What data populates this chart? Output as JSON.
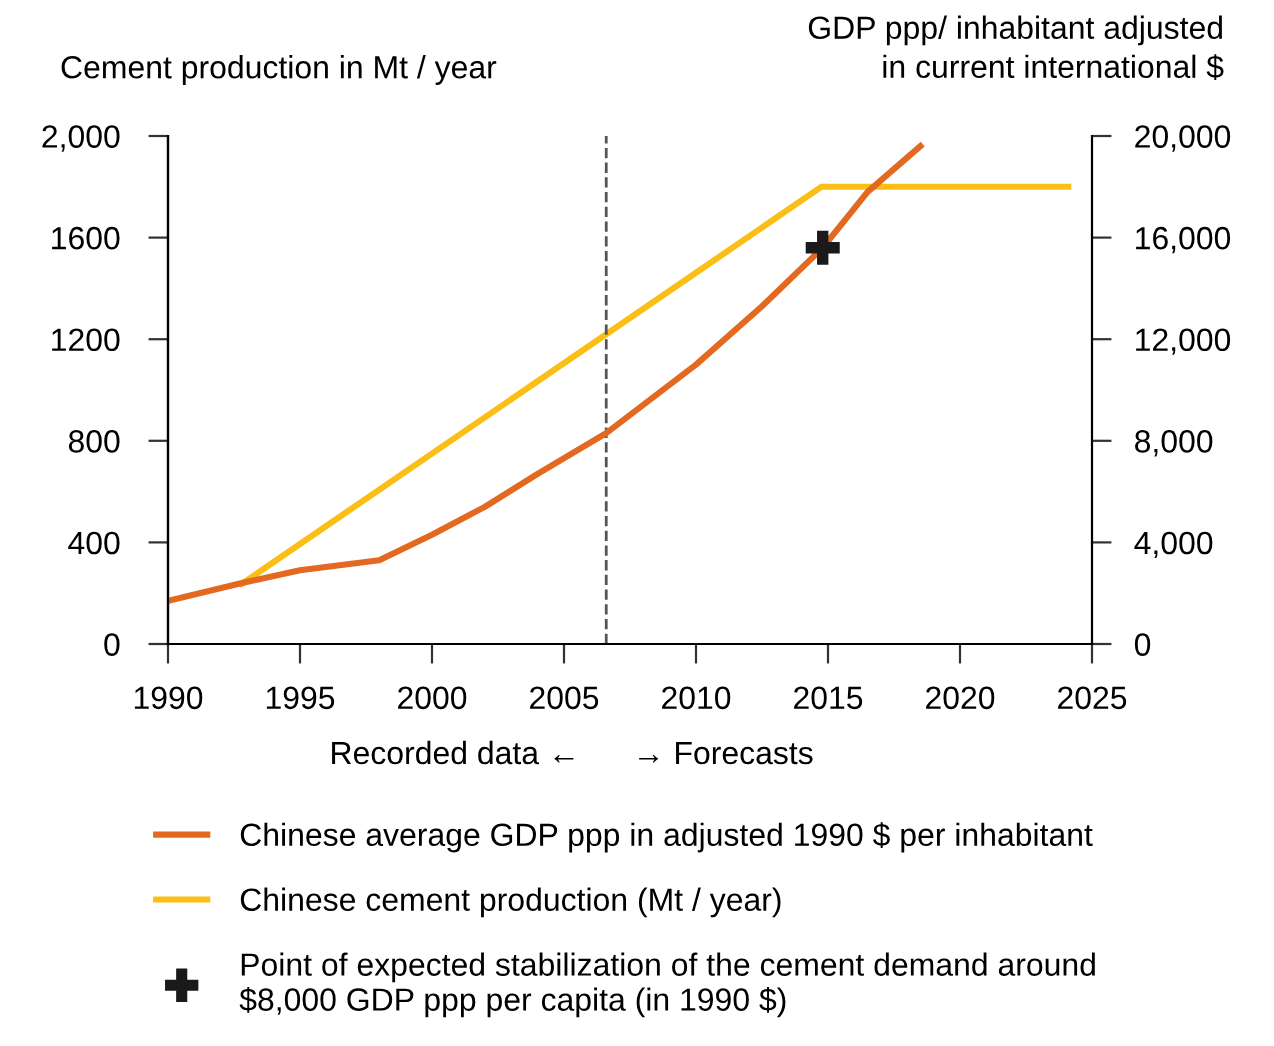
{
  "chart_data": {
    "type": "line",
    "ylabel": "Cement production in Mt / year",
    "y2label": "GDP ppp/ inhabitant adjusted\nin current international $",
    "xlim": [
      1990,
      2025
    ],
    "xticks": [
      1990,
      1995,
      2000,
      2005,
      2010,
      2015,
      2020,
      2025
    ],
    "ylim": [
      0,
      2000
    ],
    "yticks": [
      0,
      400,
      800,
      1200,
      1600,
      {
        "value": 2000,
        "label": "2,000"
      }
    ],
    "y2lim": [
      0,
      20000
    ],
    "y2ticks": [
      0,
      {
        "value": 4000,
        "label": "4,000"
      },
      {
        "value": 8000,
        "label": "8,000"
      },
      {
        "value": 12000,
        "label": "12,000"
      },
      {
        "value": 16000,
        "label": "16,000"
      },
      {
        "value": 20000,
        "label": "20,000"
      }
    ],
    "series": [
      {
        "name": "Chinese average GDP ppp in adjusted 1990 $ per inhabitant",
        "color": "#e2691f",
        "axis": "y2",
        "x": [
          1990,
          1992.8,
          1995,
          1998,
          2000,
          2002,
          2004,
          2006.6,
          2010,
          2012.5,
          2014.8,
          2016.5,
          2018.5
        ],
        "values": [
          1700,
          2400,
          2900,
          3300,
          4300,
          5400,
          6700,
          8300,
          11000,
          13300,
          15600,
          17800,
          19600
        ]
      },
      {
        "name": "Chinese cement production (Mt / year)",
        "color": "#fbbe14",
        "x": [
          1992.8,
          2014.75,
          2024.1
        ],
        "values": [
          237,
          1800,
          1800
        ]
      },
      {
        "name": "Point of expected stabilization of the cement demand around\n$8,000 GDP ppp per capita (in 1990 $)",
        "type": "scatter",
        "marker": "cross",
        "color": "#1a1a1a",
        "axis": "y2",
        "x": [
          2014.8
        ],
        "values": [
          15600
        ]
      }
    ],
    "ref_lines": [
      {
        "axis": "x",
        "value": 2006.6,
        "color": "#555555",
        "line_style": "dashed"
      }
    ],
    "annotations": [
      "Recorded data ←",
      "→ Forecasts"
    ],
    "legend": "bottom",
    "grid": false
  }
}
